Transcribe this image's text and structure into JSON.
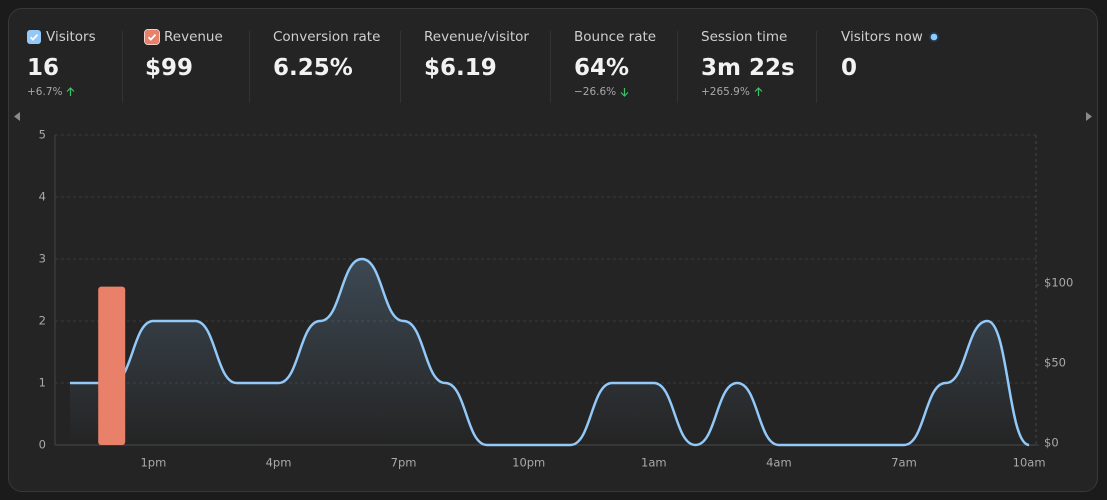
{
  "stats": [
    {
      "label": "Visitors",
      "value": "16",
      "change": "+6.7%"
    },
    {
      "label": "Revenue",
      "value": "$99"
    },
    {
      "label": "Conversion rate",
      "value": "6.25%"
    },
    {
      "label": "Revenue/visitor",
      "value": "$6.19"
    },
    {
      "label": "Bounce rate",
      "value": "64%",
      "change": "−26.6%"
    },
    {
      "label": "Session time",
      "value": "3m 22s",
      "change": "+265.9%"
    },
    {
      "label": "Visitors now",
      "value": "0"
    }
  ],
  "chart_data": {
    "type": "line",
    "categories": [
      null,
      null,
      "1pm",
      null,
      null,
      "4pm",
      null,
      null,
      "7pm",
      null,
      null,
      "10pm",
      null,
      null,
      "1am",
      null,
      null,
      "4am",
      null,
      null,
      "7am",
      null,
      null,
      "10am"
    ],
    "series": [
      {
        "name": "Visitors",
        "color": "#92c9f9",
        "values": [
          1,
          1,
          2,
          2,
          1,
          1,
          2,
          3,
          2,
          1,
          0,
          0,
          0,
          1,
          1,
          0,
          1,
          0,
          0,
          0,
          0,
          1,
          2,
          0
        ]
      },
      {
        "name": "Revenue",
        "color": "#e8806a",
        "axis": "y2",
        "values": [
          0,
          99,
          0,
          0,
          0,
          0,
          0,
          0,
          0,
          0,
          0,
          0,
          0,
          0,
          0,
          0,
          0,
          0,
          0,
          0,
          0,
          0,
          0,
          0
        ]
      }
    ],
    "ylim": [
      0,
      5
    ],
    "yticks": [
      0,
      1,
      2,
      3,
      4,
      5
    ],
    "y2lim": [
      0,
      193.75
    ],
    "y2ticks": [
      {
        "value": 0,
        "label": "$0"
      },
      {
        "value": 50,
        "label": "$50"
      },
      {
        "value": 100,
        "label": "$100"
      }
    ],
    "grid": true
  }
}
